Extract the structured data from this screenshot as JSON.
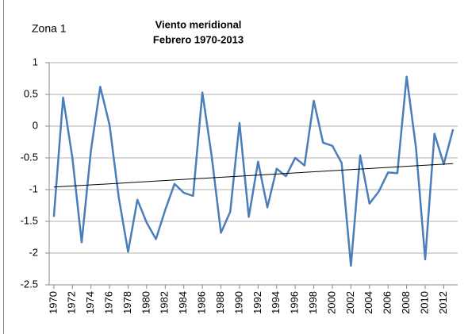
{
  "chart_data": {
    "type": "line",
    "title": "Viento meridional",
    "subtitle": "Febrero 1970-2013",
    "annotation": "Zona  1",
    "x": [
      1970,
      1971,
      1972,
      1973,
      1974,
      1975,
      1976,
      1977,
      1978,
      1979,
      1980,
      1981,
      1982,
      1983,
      1984,
      1985,
      1986,
      1987,
      1988,
      1989,
      1990,
      1991,
      1992,
      1993,
      1994,
      1995,
      1996,
      1997,
      1998,
      1999,
      2000,
      2001,
      2002,
      2003,
      2004,
      2005,
      2006,
      2007,
      2008,
      2009,
      2010,
      2011,
      2012,
      2013
    ],
    "values": [
      -1.43,
      0.45,
      -0.5,
      -1.83,
      -0.38,
      0.62,
      0.02,
      -1.13,
      -1.98,
      -1.16,
      -1.52,
      -1.78,
      -1.32,
      -0.91,
      -1.05,
      -1.1,
      0.53,
      -0.47,
      -1.68,
      -1.35,
      0.05,
      -1.43,
      -0.56,
      -1.28,
      -0.67,
      -0.79,
      -0.5,
      -0.62,
      0.4,
      -0.26,
      -0.31,
      -0.58,
      -2.2,
      -0.46,
      -1.22,
      -1.03,
      -0.73,
      -0.74,
      0.78,
      -0.33,
      -2.1,
      -0.12,
      -0.6,
      -0.05
    ],
    "color": "#4a7ebb",
    "trendline": {
      "x": [
        1970,
        2013
      ],
      "values": [
        -0.96,
        -0.59
      ],
      "color": "#000000"
    },
    "xlim": [
      1969.5,
      2013.5
    ],
    "xticks": [
      1970,
      1972,
      1974,
      1976,
      1978,
      1980,
      1982,
      1984,
      1986,
      1988,
      1990,
      1992,
      1994,
      1996,
      1998,
      2000,
      2002,
      2004,
      2006,
      2008,
      2010,
      2012
    ],
    "ylim": [
      -2.5,
      1
    ],
    "yticks": [
      -2.5,
      -2,
      -1.5,
      -1,
      -0.5,
      0,
      0.5,
      1
    ],
    "grid": true
  }
}
